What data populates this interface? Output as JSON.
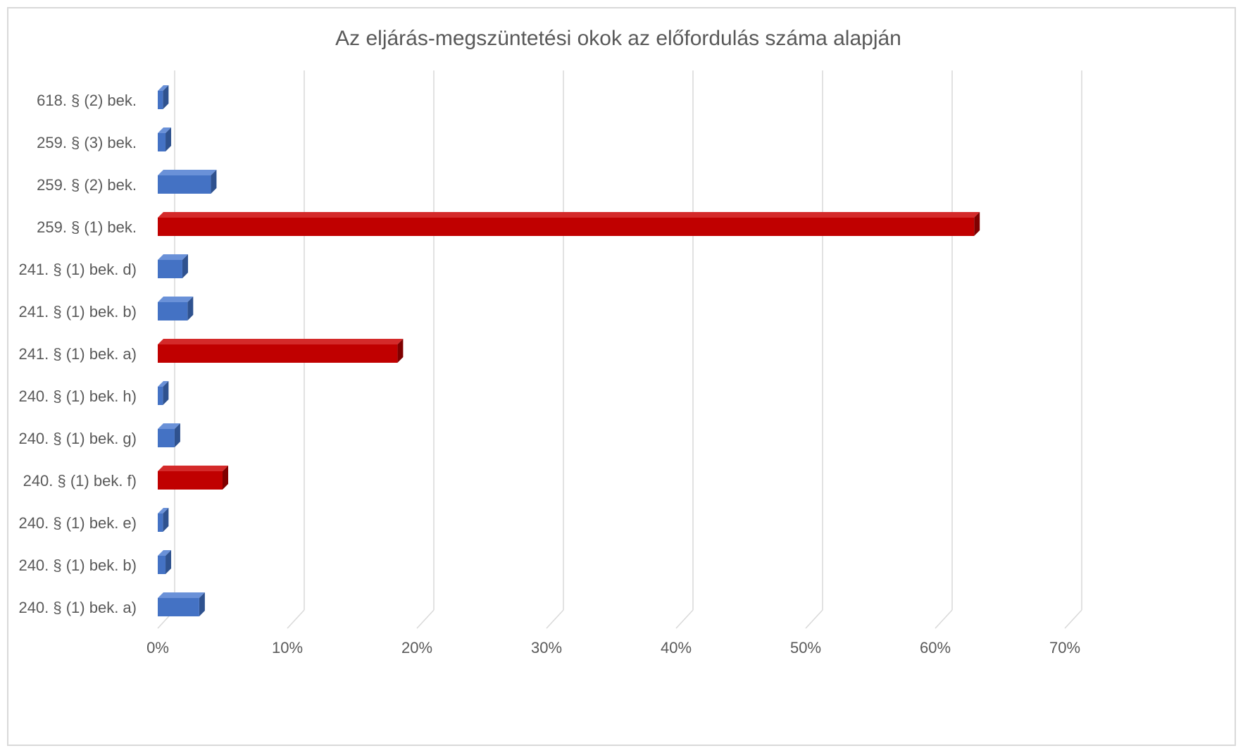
{
  "chart_data": {
    "type": "bar",
    "orientation": "horizontal",
    "style": "3d-clustered-bar",
    "title": "Az eljárás-megszüntetési okok az előfordulás száma alapján",
    "xlabel": "",
    "ylabel": "",
    "xlim": [
      0,
      70
    ],
    "x_ticks": [
      "0%",
      "10%",
      "20%",
      "30%",
      "40%",
      "50%",
      "60%",
      "70%"
    ],
    "grid": true,
    "legend": "none",
    "categories": [
      "618. § (2) bek.",
      "259. § (3) bek.",
      "259. § (2) bek.",
      "259. § (1) bek.",
      "241. § (1) bek. d)",
      "241. § (1) bek. b)",
      "241. § (1) bek. a)",
      "240. § (1) bek. h)",
      "240. § (1) bek. g)",
      "240. § (1) bek. f)",
      "240. § (1) bek. e)",
      "240. § (1) bek. b)",
      "240. § (1) bek. a)"
    ],
    "values": [
      0.4,
      0.6,
      4.1,
      63.0,
      1.9,
      2.3,
      18.5,
      0.4,
      1.3,
      5.0,
      0.4,
      0.6,
      3.2
    ],
    "highlighted": [
      false,
      false,
      false,
      true,
      false,
      false,
      true,
      false,
      false,
      true,
      false,
      false,
      false
    ],
    "colors": {
      "normal": "#4472c4",
      "normal_top": "#6a91d8",
      "normal_side": "#2f528f",
      "highlight": "#c00000",
      "highlight_top": "#d42a2a",
      "highlight_side": "#7f0000"
    }
  }
}
